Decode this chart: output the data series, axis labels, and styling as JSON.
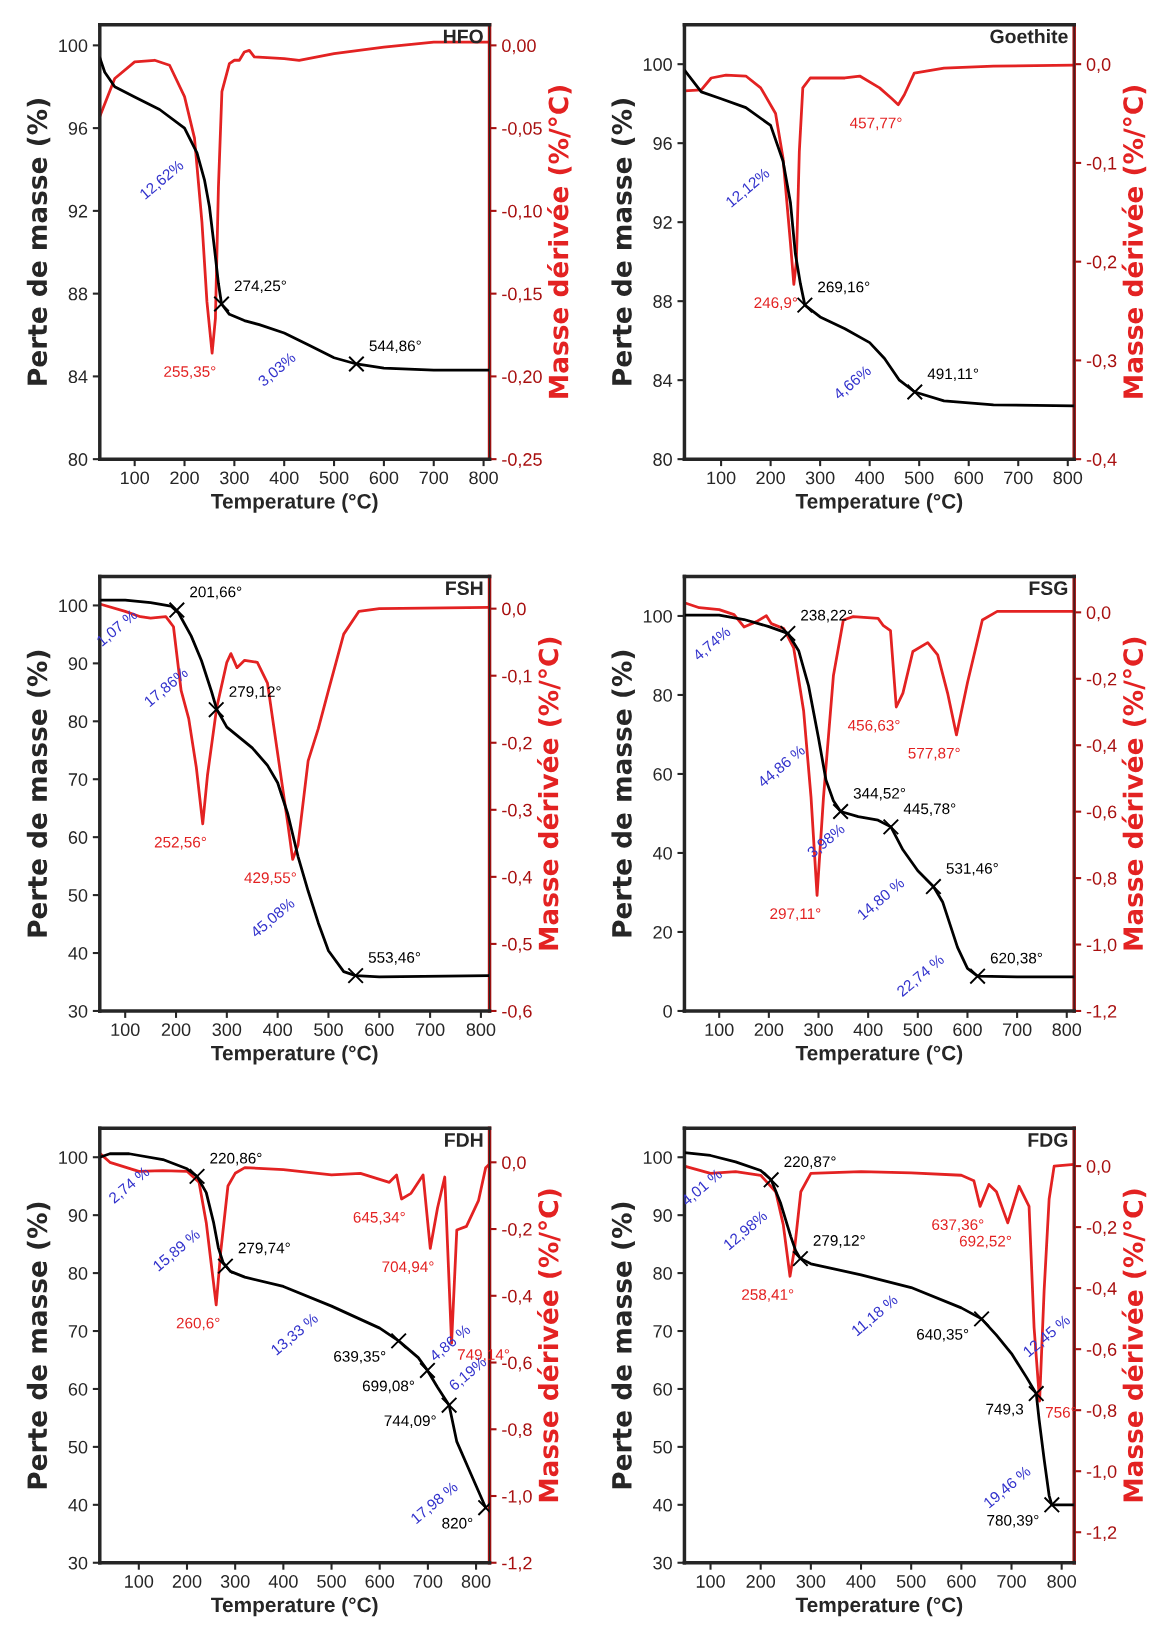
{
  "chart_data": [
    {
      "type": "line",
      "title": "HFO",
      "xlabel": "Temperature (°C)",
      "ylabel": "Perte de masse (%)",
      "y2label": "Masse dérivée (%/°C)",
      "xlim": [
        30,
        812
      ],
      "xticks": [
        100,
        200,
        300,
        400,
        500,
        600,
        700,
        800
      ],
      "ylim": [
        80,
        101
      ],
      "yticks": [
        80,
        84,
        88,
        92,
        96,
        100
      ],
      "y2lim": [
        -0.25,
        0.0125
      ],
      "y2ticks": [
        {
          "value": 0,
          "label": "0,00"
        },
        {
          "value": -0.05,
          "label": "-0,05"
        },
        {
          "value": -0.1,
          "label": "-0,10"
        },
        {
          "value": -0.15,
          "label": "-0,15"
        },
        {
          "value": -0.2,
          "label": "-0,20"
        },
        {
          "value": -0.25,
          "label": "-0,25"
        }
      ],
      "series": [
        {
          "color": "#000000",
          "x": [
            30,
            40,
            60,
            100,
            150,
            200,
            225,
            240,
            250,
            260,
            268,
            274.25,
            290,
            320,
            350,
            400,
            450,
            500,
            544.86,
            600,
            700,
            810
          ],
          "values": [
            99.4,
            98.7,
            98.0,
            97.5,
            96.9,
            96.0,
            94.8,
            93.5,
            92.2,
            90.2,
            88.5,
            87.5,
            87.0,
            86.7,
            86.5,
            86.1,
            85.5,
            84.9,
            84.6,
            84.4,
            84.3,
            84.3
          ]
        },
        {
          "color": "#e32222",
          "axis": "y2",
          "x": [
            30,
            60,
            100,
            140,
            170,
            200,
            220,
            235,
            245,
            255.35,
            262,
            268,
            275,
            290,
            300,
            310,
            320,
            330,
            340,
            400,
            430,
            500,
            600,
            700,
            810
          ],
          "values": [
            -0.043,
            -0.02,
            -0.01,
            -0.009,
            -0.012,
            -0.031,
            -0.056,
            -0.107,
            -0.155,
            -0.186,
            -0.165,
            -0.086,
            -0.028,
            -0.011,
            -0.009,
            -0.009,
            -0.004,
            -0.003,
            -0.007,
            -0.008,
            -0.009,
            -0.005,
            -0.001,
            0.002,
            0.002
          ]
        },
        {
          "type": "scatter",
          "marker": "cross",
          "color": "#000000",
          "x": [
            274.25,
            544.86
          ],
          "values": [
            87.5,
            84.6
          ]
        }
      ],
      "annotations": [
        {
          "text": "274,25°",
          "x": 274.25,
          "y": 87.5
        },
        {
          "text": "544,86°",
          "x": 544.86,
          "y": 84.6
        },
        {
          "text": "255,35°",
          "x": 255.35,
          "y": 85.12
        },
        {
          "text": "12,62%",
          "x": 225,
          "y": 94.8
        },
        {
          "text": "3,03%",
          "x": 450,
          "y": 85.5
        }
      ]
    },
    {
      "type": "line",
      "title": "Goethite",
      "xlabel": "Temperature (°C)",
      "ylabel": "Perte de masse (%)",
      "y2label": "Masse dérivée (%/°C)",
      "xlim": [
        26,
        813
      ],
      "xticks": [
        100,
        200,
        300,
        400,
        500,
        600,
        700,
        800
      ],
      "ylim": [
        80,
        102
      ],
      "yticks": [
        80,
        84,
        88,
        92,
        96,
        100
      ],
      "y2lim": [
        -0.4,
        0.04
      ],
      "y2ticks": [
        {
          "value": 0,
          "label": "0,0"
        },
        {
          "value": -0.1,
          "label": "-0,1"
        },
        {
          "value": -0.2,
          "label": "-0,2"
        },
        {
          "value": -0.3,
          "label": "-0,3"
        },
        {
          "value": -0.4,
          "label": "-0,4"
        }
      ],
      "series": [
        {
          "color": "#000000",
          "x": [
            26,
            60,
            100,
            150,
            200,
            225,
            240,
            250,
            260,
            269.16,
            300,
            350,
            400,
            430,
            460,
            491.11,
            550,
            650,
            813
          ],
          "values": [
            99.7,
            98.6,
            98.25,
            97.8,
            96.9,
            95.1,
            93.0,
            90.4,
            88.9,
            87.8,
            87.2,
            86.6,
            85.9,
            85.1,
            84.0,
            83.4,
            82.95,
            82.75,
            82.7
          ]
        },
        {
          "color": "#e32222",
          "axis": "y2",
          "x": [
            26,
            60,
            80,
            110,
            150,
            180,
            210,
            225,
            240,
            246.9,
            252,
            258,
            265,
            280,
            350,
            380,
            420,
            445,
            457.77,
            470,
            490,
            550,
            650,
            813
          ],
          "values": [
            -0.027,
            -0.026,
            -0.014,
            -0.011,
            -0.012,
            -0.024,
            -0.05,
            -0.095,
            -0.181,
            -0.223,
            -0.2,
            -0.088,
            -0.024,
            -0.014,
            -0.014,
            -0.012,
            -0.024,
            -0.035,
            -0.041,
            -0.031,
            -0.009,
            -0.004,
            -0.002,
            -0.001
          ]
        },
        {
          "type": "scatter",
          "marker": "cross",
          "color": "#000000",
          "x": [
            269.16,
            491.11
          ],
          "values": [
            87.8,
            83.4
          ]
        }
      ],
      "annotations": [
        {
          "text": "269,16°",
          "x": 269.16,
          "y": 87.8
        },
        {
          "text": "491,11°",
          "x": 491.11,
          "y": 83.4
        },
        {
          "text": "246,9°",
          "x": 246.9,
          "y": 88.85
        },
        {
          "text": "457,77°",
          "x": 457.77,
          "y": 97.95
        },
        {
          "text": "12,12%",
          "x": 225,
          "y": 95.1
        },
        {
          "text": "4,66%",
          "x": 430,
          "y": 85.1
        }
      ]
    },
    {
      "type": "line",
      "title": "FSH",
      "xlabel": "Temperature (°C)",
      "ylabel": "Perte de masse (%)",
      "y2label": "Masse dérivée (%/°C)",
      "xlim": [
        50,
        817
      ],
      "xticks": [
        100,
        200,
        300,
        400,
        500,
        600,
        700,
        800
      ],
      "ylim": [
        30,
        105
      ],
      "yticks": [
        30,
        40,
        50,
        60,
        70,
        80,
        90,
        100
      ],
      "y2lim": [
        -0.6,
        0.048
      ],
      "y2ticks": [
        {
          "value": 0,
          "label": "0,0"
        },
        {
          "value": -0.1,
          "label": "-0,1"
        },
        {
          "value": -0.2,
          "label": "-0,2"
        },
        {
          "value": -0.3,
          "label": "-0,3"
        },
        {
          "value": -0.4,
          "label": "-0,4"
        },
        {
          "value": -0.5,
          "label": "-0,5"
        },
        {
          "value": -0.6,
          "label": "-0,6"
        }
      ],
      "series": [
        {
          "color": "#000000",
          "x": [
            50,
            100,
            150,
            190,
            205,
            230,
            250,
            270,
            280,
            300,
            350,
            380,
            400,
            420,
            440,
            460,
            480,
            500,
            530,
            553.46,
            600,
            817
          ],
          "values": [
            100.9,
            100.9,
            100.5,
            99.9,
            98.7,
            94.7,
            90.5,
            85.1,
            82.1,
            79.0,
            75.4,
            72.4,
            69.4,
            64.0,
            56.7,
            50.7,
            45.2,
            40.4,
            36.8,
            36.1,
            35.9,
            36.1
          ]
        },
        {
          "color": "#e32222",
          "axis": "y2",
          "x": [
            50,
            100,
            130,
            150,
            180,
            195,
            210,
            225,
            240,
            252.56,
            262,
            280,
            300,
            308,
            320,
            335,
            360,
            380,
            400,
            420,
            429.55,
            440,
            460,
            480,
            500,
            530,
            560,
            600,
            817
          ],
          "values": [
            0.007,
            -0.004,
            -0.012,
            -0.014,
            -0.012,
            -0.027,
            -0.122,
            -0.164,
            -0.237,
            -0.321,
            -0.248,
            -0.148,
            -0.08,
            -0.067,
            -0.088,
            -0.077,
            -0.08,
            -0.111,
            -0.216,
            -0.321,
            -0.374,
            -0.353,
            -0.227,
            -0.179,
            -0.122,
            -0.038,
            -0.004,
            0.0,
            0.002
          ]
        },
        {
          "type": "scatter",
          "marker": "cross",
          "color": "#000000",
          "x": [
            201.66,
            279.12,
            553.46
          ],
          "values": [
            99.2,
            82.0,
            36.1
          ]
        }
      ],
      "annotations": [
        {
          "text": "201,66°",
          "x": 201.66,
          "y": 99.2
        },
        {
          "text": "279,12°",
          "x": 279.12,
          "y": 82.0
        },
        {
          "text": "553,46°",
          "x": 553.46,
          "y": 36.1
        },
        {
          "text": "252,56°",
          "x": 252.56,
          "y": 62.29
        },
        {
          "text": "429,55°",
          "x": 429.55,
          "y": 56.16
        },
        {
          "text": "1,07 %",
          "x": 150,
          "y": 100.5
        },
        {
          "text": "17,86%",
          "x": 250,
          "y": 90.5
        },
        {
          "text": "45,08%",
          "x": 460,
          "y": 50.7
        }
      ]
    },
    {
      "type": "line",
      "title": "FSG",
      "xlabel": "Temperature (°C)",
      "ylabel": "Perte de masse (%)",
      "y2label": "Masse dérivée (%/°C)",
      "xlim": [
        30,
        815
      ],
      "xticks": [
        100,
        200,
        300,
        400,
        500,
        600,
        700,
        800
      ],
      "ylim": [
        0,
        110
      ],
      "yticks": [
        0,
        20,
        40,
        60,
        80,
        100
      ],
      "y2lim": [
        -1.2,
        0.108
      ],
      "y2ticks": [
        {
          "value": 0,
          "label": "0,0"
        },
        {
          "value": -0.2,
          "label": "-0,2"
        },
        {
          "value": -0.4,
          "label": "-0,4"
        },
        {
          "value": -0.6,
          "label": "-0,6"
        },
        {
          "value": -0.8,
          "label": "-0,8"
        },
        {
          "value": -1.0,
          "label": "-1,0"
        },
        {
          "value": -1.2,
          "label": "-1,2"
        }
      ],
      "series": [
        {
          "color": "#000000",
          "x": [
            30,
            100,
            150,
            200,
            238.22,
            260,
            280,
            300,
            315,
            330,
            344.52,
            380,
            420,
            445.78,
            470,
            500,
            531.46,
            550,
            580,
            600,
            620.38,
            700,
            815
          ],
          "values": [
            100.2,
            100.2,
            99.1,
            97.3,
            95.6,
            91.2,
            82.3,
            69.1,
            58.5,
            53.2,
            50.5,
            49.2,
            48.3,
            46.6,
            40.8,
            35.5,
            31.5,
            27.6,
            16.1,
            10.8,
            8.8,
            8.6,
            8.6
          ]
        },
        {
          "color": "#e32222",
          "axis": "y2",
          "x": [
            30,
            60,
            100,
            130,
            150,
            175,
            195,
            205,
            230,
            250,
            270,
            285,
            297.11,
            310,
            330,
            350,
            370,
            420,
            430,
            445,
            456.63,
            470,
            490,
            520,
            540,
            560,
            577.87,
            600,
            630,
            660,
            815
          ],
          "values": [
            0.029,
            0.014,
            0.008,
            -0.007,
            -0.044,
            -0.028,
            -0.01,
            -0.034,
            -0.049,
            -0.107,
            -0.296,
            -0.558,
            -0.852,
            -0.558,
            -0.191,
            -0.023,
            -0.013,
            -0.018,
            -0.039,
            -0.055,
            -0.285,
            -0.243,
            -0.118,
            -0.091,
            -0.128,
            -0.243,
            -0.369,
            -0.212,
            -0.023,
            0.003,
            0.003
          ]
        },
        {
          "type": "scatter",
          "marker": "cross",
          "color": "#000000",
          "x": [
            238.22,
            344.52,
            445.78,
            531.46,
            620.38
          ],
          "values": [
            95.6,
            50.5,
            46.6,
            31.5,
            8.8
          ]
        }
      ],
      "annotations": [
        {
          "text": "238,22°",
          "x": 238.22,
          "y": 95.6
        },
        {
          "text": "344,52°",
          "x": 344.52,
          "y": 50.5
        },
        {
          "text": "445,78°",
          "x": 445.78,
          "y": 46.6
        },
        {
          "text": "531,46°",
          "x": 531.46,
          "y": 31.5
        },
        {
          "text": "620,38°",
          "x": 620.38,
          "y": 8.8
        },
        {
          "text": "297,11°",
          "x": 297.11,
          "y": 29.27
        },
        {
          "text": "456,63°",
          "x": 456.63,
          "y": 76.95
        },
        {
          "text": "577,87°",
          "x": 577.87,
          "y": 69.89
        },
        {
          "text": "4,74%",
          "x": 150,
          "y": 99.1
        },
        {
          "text": "44,86 %",
          "x": 300,
          "y": 69.1
        },
        {
          "text": "3,98%",
          "x": 380,
          "y": 49.2
        },
        {
          "text": "14,80 %",
          "x": 500,
          "y": 35.5
        },
        {
          "text": "22,74 %",
          "x": 580,
          "y": 16.1
        }
      ]
    },
    {
      "type": "line",
      "title": "FDH",
      "xlabel": "Temperature (°C)",
      "ylabel": "Perte de masse (%)",
      "y2label": "Masse dérivée (%/°C)",
      "xlim": [
        19,
        828
      ],
      "xticks": [
        100,
        200,
        300,
        400,
        500,
        600,
        700,
        800
      ],
      "ylim": [
        30,
        105
      ],
      "yticks": [
        30,
        40,
        50,
        60,
        70,
        80,
        90,
        100
      ],
      "y2lim": [
        -1.2,
        0.102
      ],
      "y2ticks": [
        {
          "value": 0,
          "label": "0,0"
        },
        {
          "value": -0.2,
          "label": "-0,2"
        },
        {
          "value": -0.4,
          "label": "-0,4"
        },
        {
          "value": -0.6,
          "label": "-0,6"
        },
        {
          "value": -0.8,
          "label": "-0,8"
        },
        {
          "value": -1.0,
          "label": "-1,0"
        },
        {
          "value": -1.2,
          "label": "-1,2"
        }
      ],
      "series": [
        {
          "color": "#000000",
          "x": [
            19,
            40,
            80,
            150,
            200,
            220.86,
            240,
            255,
            265,
            275,
            290,
            320,
            400,
            500,
            600,
            639.35,
            680,
            699.08,
            720,
            744.09,
            760,
            790,
            820
          ],
          "values": [
            100,
            100.6,
            100.6,
            99.6,
            98.0,
            96.7,
            93.9,
            88.8,
            84.4,
            81.8,
            80.3,
            79.3,
            77.7,
            74.3,
            70.5,
            68.3,
            65.4,
            63.2,
            60.3,
            57.2,
            50.9,
            45.2,
            39.5
          ]
        },
        {
          "color": "#e32222",
          "axis": "y2",
          "x": [
            19,
            40,
            100,
            150,
            200,
            225,
            240,
            250,
            260.6,
            270,
            285,
            300,
            320,
            400,
            500,
            560,
            620,
            635,
            645.34,
            665,
            690,
            704.94,
            720,
            735,
            749.14,
            760,
            780,
            805,
            820,
            828
          ],
          "values": [
            0.027,
            0.0,
            -0.027,
            -0.025,
            -0.027,
            -0.06,
            -0.181,
            -0.301,
            -0.427,
            -0.268,
            -0.071,
            -0.033,
            -0.016,
            -0.022,
            -0.038,
            -0.033,
            -0.06,
            -0.038,
            -0.11,
            -0.093,
            -0.038,
            -0.258,
            -0.137,
            -0.044,
            -0.542,
            -0.203,
            -0.192,
            -0.115,
            -0.016,
            -0.005
          ]
        },
        {
          "type": "scatter",
          "marker": "cross",
          "color": "#000000",
          "x": [
            220.86,
            279.74,
            639.35,
            699.08,
            744.09,
            820
          ],
          "values": [
            96.7,
            81.2,
            68.3,
            63.2,
            57.2,
            39.5
          ]
        }
      ],
      "annotations": [
        {
          "text": "220,86°",
          "x": 220.86,
          "y": 96.7
        },
        {
          "text": "279,74°",
          "x": 279.74,
          "y": 81.2
        },
        {
          "text": "639,35°",
          "x": 639.35,
          "y": 68.3
        },
        {
          "text": "699,08°",
          "x": 699.08,
          "y": 63.2
        },
        {
          "text": "744,09°",
          "x": 744.09,
          "y": 57.2
        },
        {
          "text": "820°",
          "x": 820,
          "y": 39.5
        },
        {
          "text": "260,6°",
          "x": 260.6,
          "y": 74.53
        },
        {
          "text": "645,34°",
          "x": 645.34,
          "y": 92.79
        },
        {
          "text": "704,94°",
          "x": 704.94,
          "y": 84.26
        },
        {
          "text": "749,14°",
          "x": 749.14,
          "y": 67.9
        },
        {
          "text": "2,74 %",
          "x": 150,
          "y": 99.6
        },
        {
          "text": "15,89 %",
          "x": 255,
          "y": 88.8
        },
        {
          "text": "13,33 %",
          "x": 500,
          "y": 74.3
        },
        {
          "text": "4,86 %",
          "x": 680,
          "y": 65.4
        },
        {
          "text": "6,19%",
          "x": 720,
          "y": 60.3
        },
        {
          "text": "17,98 %",
          "x": 790,
          "y": 45.2
        }
      ]
    },
    {
      "type": "line",
      "title": "FDG",
      "xlabel": "Temperature (°C)",
      "ylabel": "Perte de masse (%)",
      "y2label": "Masse dérivée (%/°C)",
      "xlim": [
        48,
        825
      ],
      "xticks": [
        100,
        200,
        300,
        400,
        500,
        600,
        700,
        800
      ],
      "ylim": [
        30,
        105
      ],
      "yticks": [
        30,
        40,
        50,
        60,
        70,
        80,
        90,
        100
      ],
      "y2lim": [
        -1.3,
        0.124
      ],
      "y2ticks": [
        {
          "value": 0,
          "label": "0,0"
        },
        {
          "value": -0.2,
          "label": "-0,2"
        },
        {
          "value": -0.4,
          "label": "-0,4"
        },
        {
          "value": -0.6,
          "label": "-0,6"
        },
        {
          "value": -0.8,
          "label": "-0,8"
        },
        {
          "value": -1.0,
          "label": "-1,0"
        },
        {
          "value": -1.2,
          "label": "-1,2"
        }
      ],
      "series": [
        {
          "color": "#000000",
          "x": [
            48,
            100,
            150,
            200,
            220.87,
            240,
            260,
            270,
            279.12,
            300,
            400,
            500,
            600,
            640.35,
            670,
            700,
            730,
            749.3,
            755,
            765,
            775,
            780.39,
            825
          ],
          "values": [
            100.8,
            100.3,
            99.2,
            97.7,
            96.1,
            92.0,
            86.3,
            83.8,
            82.5,
            81.6,
            79.7,
            77.5,
            74.0,
            72.1,
            69.3,
            66.1,
            62.0,
            59.2,
            54.7,
            47.9,
            41.6,
            40.0,
            40.0
          ]
        },
        {
          "color": "#e32222",
          "axis": "y2",
          "x": [
            48,
            100,
            150,
            200,
            230,
            245,
            258.41,
            268,
            280,
            300,
            400,
            500,
            600,
            625,
            637.36,
            655,
            670,
            692.52,
            715,
            735,
            745,
            756,
            765,
            775,
            785,
            825
          ],
          "values": [
            0.0,
            -0.024,
            -0.018,
            -0.03,
            -0.084,
            -0.192,
            -0.361,
            -0.265,
            -0.084,
            -0.024,
            -0.018,
            -0.022,
            -0.03,
            -0.048,
            -0.132,
            -0.06,
            -0.084,
            -0.186,
            -0.066,
            -0.132,
            -0.529,
            -0.77,
            -0.409,
            -0.108,
            0.0,
            0.006
          ]
        },
        {
          "type": "scatter",
          "marker": "cross",
          "color": "#000000",
          "x": [
            220.87,
            279.12,
            640.35,
            749.3,
            780.39
          ],
          "values": [
            96.1,
            82.5,
            72.1,
            59.2,
            40.0
          ]
        }
      ],
      "annotations": [
        {
          "text": "220,87°",
          "x": 220.87,
          "y": 96.1
        },
        {
          "text": "279,12°",
          "x": 279.12,
          "y": 82.5
        },
        {
          "text": "640,35°",
          "x": 640.35,
          "y": 72.1
        },
        {
          "text": "749,3",
          "x": 749.3,
          "y": 59.2
        },
        {
          "text": "780,39°",
          "x": 780.39,
          "y": 40.0
        },
        {
          "text": "258,41°",
          "x": 258.41,
          "y": 79.46
        },
        {
          "text": "637,36°",
          "x": 637.36,
          "y": 91.52
        },
        {
          "text": "692,52°",
          "x": 692.52,
          "y": 88.68
        },
        {
          "text": "756°",
          "x": 756,
          "y": 57.92
        },
        {
          "text": "4,01 %",
          "x": 150,
          "y": 99.2
        },
        {
          "text": "12,98%",
          "x": 240,
          "y": 92.0
        },
        {
          "text": "11,18 %",
          "x": 500,
          "y": 77.5
        },
        {
          "text": "12,45 %",
          "x": 700,
          "y": 66.1
        },
        {
          "text": "19,46 %",
          "x": 765,
          "y": 47.9
        }
      ]
    }
  ]
}
